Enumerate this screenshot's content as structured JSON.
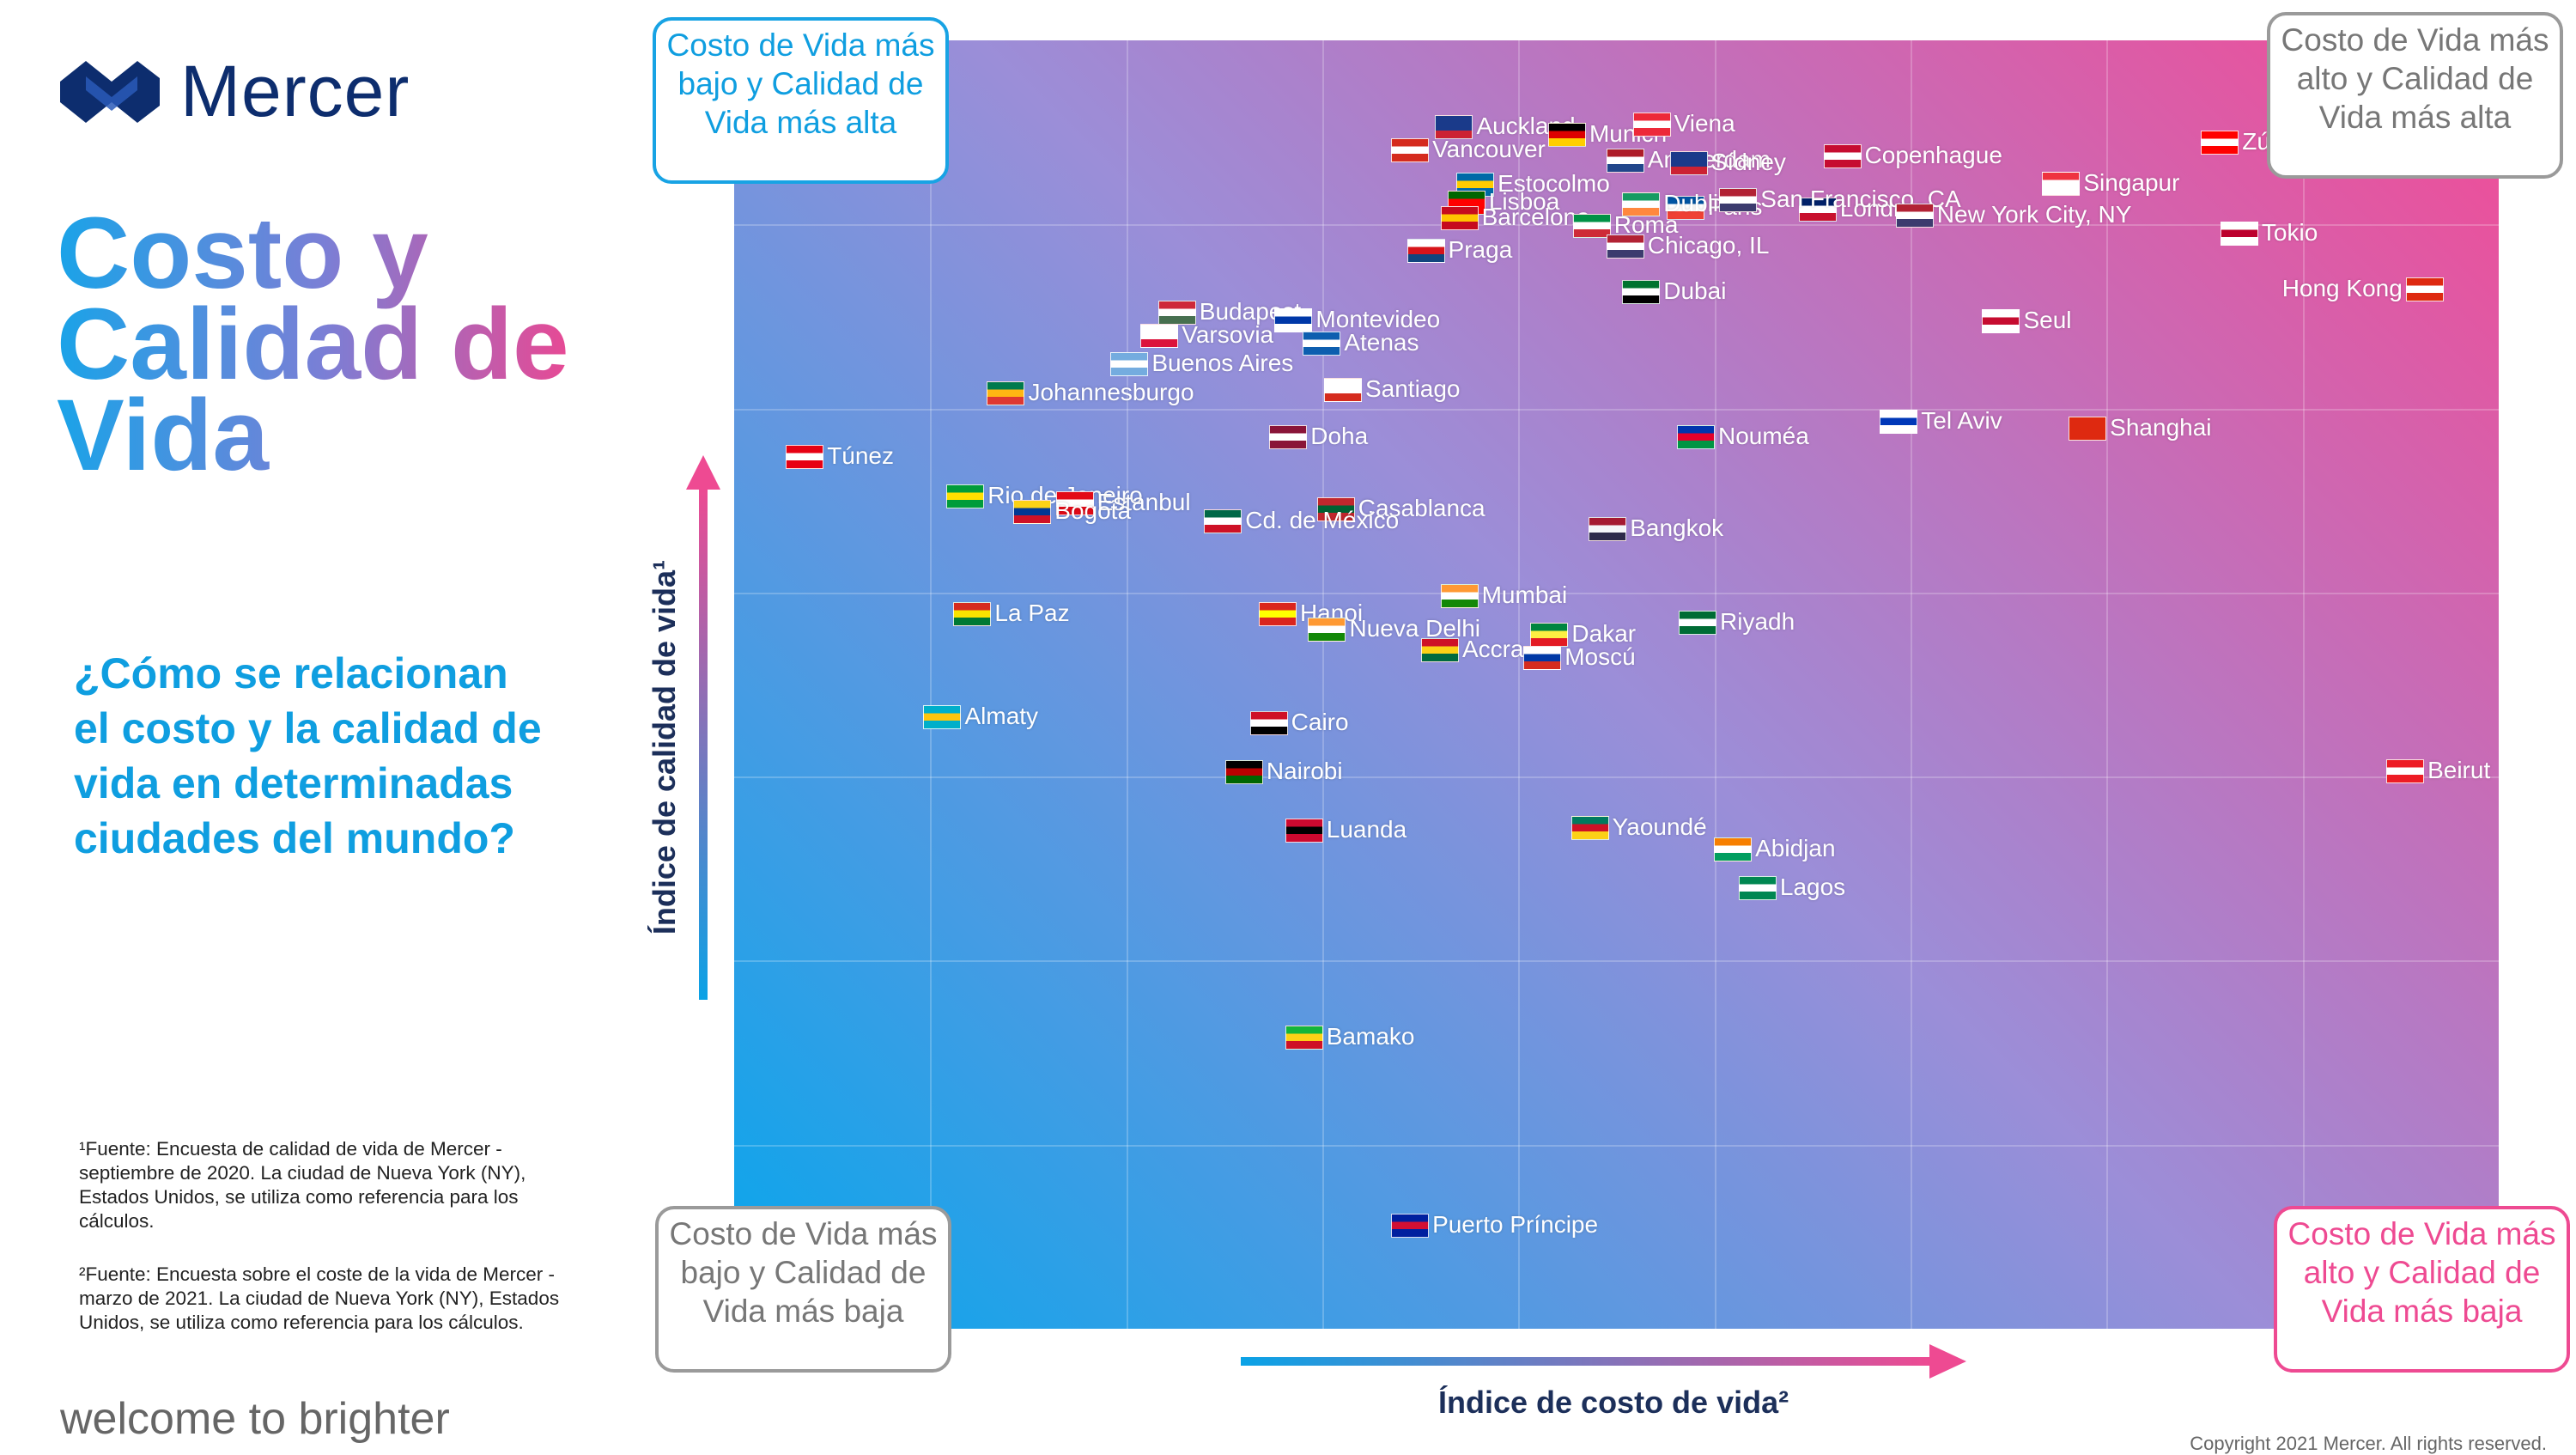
{
  "brand": {
    "name": "Mercer",
    "tagline": "welcome to brighter",
    "copyright": "Copyright 2021 Mercer. All rights reserved."
  },
  "title": {
    "line1": "Costo y",
    "line2": "Calidad de",
    "line3": "Vida"
  },
  "question": "¿Cómo se relacionan el costo y la calidad de vida en determinadas ciudades del mundo?",
  "footnotes": {
    "note1": "¹Fuente: Encuesta de calidad de vida de Mercer - septiembre de 2020. La ciudad de Nueva York (NY), Estados Unidos, se utiliza como referencia para los cálculos.",
    "note2": "²Fuente: Encuesta sobre el coste de la vida de Mercer - marzo de 2021. La ciudad de Nueva York (NY), Estados Unidos, se utiliza como referencia para los cálculos."
  },
  "quadrants": {
    "top_left": "Costo de Vida más bajo y Calidad de Vida más alta",
    "top_right": "Costo de Vida más alto y Calidad de Vida más alta",
    "bottom_left": "Costo de Vida más bajo y Calidad de Vida más baja",
    "bottom_right": "Costo de Vida más alto y Calidad de Vida más baja"
  },
  "colors": {
    "blue": "#0aa2e6",
    "pink": "#ee4a92",
    "grey": "#8a8a8a",
    "navy": "#1c2f5a"
  },
  "chart_data": {
    "type": "scatter",
    "title": "",
    "xlabel": "Índice de costo de vida²",
    "ylabel": "Índice de calidad de vida¹",
    "xlim": [
      0,
      100
    ],
    "ylim": [
      0,
      100
    ],
    "grid": true,
    "points": [
      {
        "label": "Auckland",
        "x": 40.8,
        "y": 93.3,
        "flag": [
          "#1a3a8a",
          "#1a3a8a",
          "#cc2233"
        ]
      },
      {
        "label": "Munich",
        "x": 47.2,
        "y": 92.7,
        "flag": [
          "#000000",
          "#dd0000",
          "#ffce00"
        ]
      },
      {
        "label": "Viena",
        "x": 52.0,
        "y": 93.5,
        "flag": [
          "#ed2939",
          "#ffffff",
          "#ed2939"
        ]
      },
      {
        "label": "Vancouver",
        "x": 38.3,
        "y": 91.5,
        "flag": [
          "#d52b1e",
          "#ffffff",
          "#d52b1e"
        ]
      },
      {
        "label": "Amsterdam",
        "x": 50.5,
        "y": 90.7,
        "flag": [
          "#ae1c28",
          "#ffffff",
          "#21468b"
        ]
      },
      {
        "label": "Sídney",
        "x": 54.1,
        "y": 90.5,
        "flag": [
          "#1a3a8a",
          "#1a3a8a",
          "#cc2233"
        ]
      },
      {
        "label": "Copenhague",
        "x": 62.8,
        "y": 91.0,
        "flag": [
          "#c60c30",
          "#ffffff",
          "#c60c30"
        ]
      },
      {
        "label": "Zúrich",
        "x": 84.2,
        "y": 92.1,
        "flag": [
          "#ff0000",
          "#ffffff",
          "#ff0000"
        ]
      },
      {
        "label": "Estocolmo",
        "x": 42.0,
        "y": 88.8,
        "flag": [
          "#006aa7",
          "#fecc00",
          "#006aa7"
        ]
      },
      {
        "label": "Paris",
        "x": 53.9,
        "y": 87.0,
        "flag": [
          "#0055a4",
          "#ffffff",
          "#ef4135"
        ]
      },
      {
        "label": "Londres",
        "x": 61.4,
        "y": 86.9,
        "flag": [
          "#012169",
          "#ffffff",
          "#c8102e"
        ]
      },
      {
        "label": "Singapur",
        "x": 75.2,
        "y": 88.9,
        "flag": [
          "#ef3340",
          "#ffffff",
          "#ffffff"
        ]
      },
      {
        "label": "Lisboa",
        "x": 41.5,
        "y": 87.4,
        "flag": [
          "#006600",
          "#ff0000",
          "#ff0000"
        ]
      },
      {
        "label": "Dublin",
        "x": 51.4,
        "y": 87.3,
        "flag": [
          "#169b62",
          "#ffffff",
          "#ff883e"
        ]
      },
      {
        "label": "San Francisco, CA",
        "x": 56.9,
        "y": 87.6,
        "flag": [
          "#b22234",
          "#ffffff",
          "#3c3b6e"
        ]
      },
      {
        "label": "New York City, NY",
        "x": 66.9,
        "y": 86.4,
        "flag": [
          "#b22234",
          "#ffffff",
          "#3c3b6e"
        ]
      },
      {
        "label": "Barcelona",
        "x": 41.1,
        "y": 86.2,
        "flag": [
          "#c60b1e",
          "#ffc400",
          "#c60b1e"
        ]
      },
      {
        "label": "Roma",
        "x": 48.6,
        "y": 85.6,
        "flag": [
          "#009246",
          "#ffffff",
          "#ce2b37"
        ]
      },
      {
        "label": "Chicago, IL",
        "x": 50.5,
        "y": 84.0,
        "flag": [
          "#b22234",
          "#ffffff",
          "#3c3b6e"
        ]
      },
      {
        "label": "Tokio",
        "x": 85.3,
        "y": 85.0,
        "flag": [
          "#ffffff",
          "#bc002d",
          "#ffffff"
        ]
      },
      {
        "label": "Praga",
        "x": 39.2,
        "y": 83.7,
        "flag": [
          "#ffffff",
          "#d7141a",
          "#11457e"
        ]
      },
      {
        "label": "Budapest",
        "x": 25.1,
        "y": 78.9,
        "flag": [
          "#ce2939",
          "#ffffff",
          "#477050"
        ]
      },
      {
        "label": "Dubai",
        "x": 51.4,
        "y": 80.5,
        "flag": [
          "#00732f",
          "#ffffff",
          "#000000"
        ]
      },
      {
        "label": "Hong Kong",
        "x": 95.8,
        "y": 80.7,
        "flag": [
          "#de2910",
          "#ffffff",
          "#de2910"
        ]
      },
      {
        "label": "Montevideo",
        "x": 31.7,
        "y": 78.3,
        "flag": [
          "#ffffff",
          "#0038a8",
          "#ffffff"
        ]
      },
      {
        "label": "Varsovia",
        "x": 24.1,
        "y": 77.1,
        "flag": [
          "#ffffff",
          "#ffffff",
          "#dc143c"
        ]
      },
      {
        "label": "Seul",
        "x": 71.8,
        "y": 78.2,
        "flag": [
          "#ffffff",
          "#c60c30",
          "#ffffff"
        ]
      },
      {
        "label": "Atenas",
        "x": 33.3,
        "y": 76.5,
        "flag": [
          "#0d5eaf",
          "#ffffff",
          "#0d5eaf"
        ]
      },
      {
        "label": "Buenos Aires",
        "x": 22.4,
        "y": 74.9,
        "flag": [
          "#74acdf",
          "#ffffff",
          "#74acdf"
        ]
      },
      {
        "label": "Johannesburgo",
        "x": 15.4,
        "y": 72.6,
        "flag": [
          "#007a4d",
          "#ffb612",
          "#de3831"
        ]
      },
      {
        "label": "Santiago",
        "x": 34.5,
        "y": 72.9,
        "flag": [
          "#ffffff",
          "#ffffff",
          "#d52b1e"
        ]
      },
      {
        "label": "Túnez",
        "x": 4.0,
        "y": 67.7,
        "flag": [
          "#e70013",
          "#ffffff",
          "#e70013"
        ]
      },
      {
        "label": "Doha",
        "x": 31.4,
        "y": 69.2,
        "flag": [
          "#8a1538",
          "#ffffff",
          "#8a1538"
        ]
      },
      {
        "label": "Nouméa",
        "x": 54.5,
        "y": 69.2,
        "flag": [
          "#0035ad",
          "#e4002b",
          "#009543"
        ]
      },
      {
        "label": "Tel Aviv",
        "x": 66.0,
        "y": 70.4,
        "flag": [
          "#ffffff",
          "#0038b8",
          "#ffffff"
        ]
      },
      {
        "label": "Shanghai",
        "x": 76.7,
        "y": 69.9,
        "flag": [
          "#de2910",
          "#de2910",
          "#de2910"
        ]
      },
      {
        "label": "Rio de Janeiro",
        "x": 13.1,
        "y": 64.6,
        "flag": [
          "#009c3b",
          "#ffdf00",
          "#009c3b"
        ]
      },
      {
        "label": "Estanbul",
        "x": 19.3,
        "y": 64.1,
        "flag": [
          "#e30a17",
          "#ffffff",
          "#e30a17"
        ]
      },
      {
        "label": "Bogotá",
        "x": 16.9,
        "y": 63.4,
        "flag": [
          "#fcd116",
          "#003893",
          "#ce1126"
        ]
      },
      {
        "label": "Casablanca",
        "x": 34.1,
        "y": 63.6,
        "flag": [
          "#c1272d",
          "#006233",
          "#c1272d"
        ]
      },
      {
        "label": "Cd. de México",
        "x": 27.7,
        "y": 62.7,
        "flag": [
          "#006847",
          "#ffffff",
          "#ce1126"
        ]
      },
      {
        "label": "Bangkok",
        "x": 49.5,
        "y": 62.1,
        "flag": [
          "#a51931",
          "#f4f5f8",
          "#2d2a4a"
        ]
      },
      {
        "label": "Mumbai",
        "x": 41.1,
        "y": 56.9,
        "flag": [
          "#ff9933",
          "#ffffff",
          "#138808"
        ]
      },
      {
        "label": "Hanoi",
        "x": 30.8,
        "y": 55.5,
        "flag": [
          "#da251d",
          "#ffff00",
          "#da251d"
        ]
      },
      {
        "label": "La Paz",
        "x": 13.5,
        "y": 55.5,
        "flag": [
          "#d52b1e",
          "#f9e300",
          "#007934"
        ]
      },
      {
        "label": "Riyadh",
        "x": 54.6,
        "y": 54.8,
        "flag": [
          "#006c35",
          "#ffffff",
          "#006c35"
        ]
      },
      {
        "label": "Accra",
        "x": 40.0,
        "y": 52.7,
        "flag": [
          "#ce1126",
          "#fcd116",
          "#006b3f"
        ]
      },
      {
        "label": "Nueva Delhi",
        "x": 33.6,
        "y": 54.3,
        "flag": [
          "#ff9933",
          "#ffffff",
          "#138808"
        ]
      },
      {
        "label": "Dakar",
        "x": 46.2,
        "y": 53.9,
        "flag": [
          "#00853f",
          "#fdef42",
          "#e31b23"
        ]
      },
      {
        "label": "Moscú",
        "x": 45.8,
        "y": 52.1,
        "flag": [
          "#ffffff",
          "#0039a6",
          "#d52b1e"
        ]
      },
      {
        "label": "Almaty",
        "x": 11.8,
        "y": 47.5,
        "flag": [
          "#00afca",
          "#fec50c",
          "#00afca"
        ]
      },
      {
        "label": "Cairo",
        "x": 30.3,
        "y": 47.0,
        "flag": [
          "#ce1126",
          "#ffffff",
          "#000000"
        ]
      },
      {
        "label": "Nairobi",
        "x": 28.9,
        "y": 43.2,
        "flag": [
          "#000000",
          "#bb0000",
          "#006600"
        ]
      },
      {
        "label": "Beirut",
        "x": 94.7,
        "y": 43.3,
        "flag": [
          "#ed1c24",
          "#ffffff",
          "#ed1c24"
        ]
      },
      {
        "label": "Luanda",
        "x": 32.3,
        "y": 38.7,
        "flag": [
          "#cc092f",
          "#000000",
          "#cc092f"
        ]
      },
      {
        "label": "Yaoundé",
        "x": 48.5,
        "y": 38.9,
        "flag": [
          "#007a5e",
          "#ce1126",
          "#fcd116"
        ]
      },
      {
        "label": "Abidjan",
        "x": 56.6,
        "y": 37.2,
        "flag": [
          "#f77f00",
          "#ffffff",
          "#009e60"
        ]
      },
      {
        "label": "Lagos",
        "x": 58.0,
        "y": 34.2,
        "flag": [
          "#008751",
          "#ffffff",
          "#008751"
        ]
      },
      {
        "label": "Bamako",
        "x": 32.3,
        "y": 22.6,
        "flag": [
          "#14b53a",
          "#fcd116",
          "#ce1126"
        ]
      },
      {
        "label": "Puerto Príncipe",
        "x": 38.3,
        "y": 8.0,
        "flag": [
          "#00209f",
          "#d21034",
          "#00209f"
        ]
      }
    ]
  }
}
